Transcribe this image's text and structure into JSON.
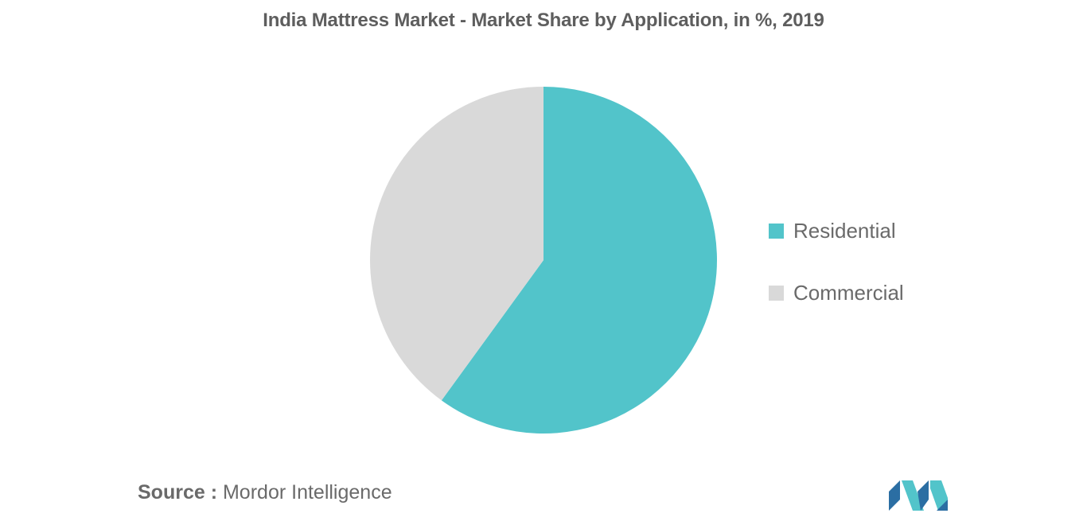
{
  "chart_data": {
    "type": "pie",
    "title": "India Mattress Market - Market Share by Application, in %, 2019",
    "slices": [
      {
        "name": "Residential",
        "value": 60,
        "color": "#52c4ca"
      },
      {
        "name": "Commercial",
        "value": 40,
        "color": "#d9d9d9"
      }
    ],
    "start_angle_deg": 0,
    "direction": "clockwise",
    "legend_placement": "right"
  },
  "source": {
    "label": "Source :",
    "text": "Mordor Intelligence"
  },
  "logo": {
    "icon": "mordor-intelligence-logo-icon",
    "colors": [
      "#2b6ea3",
      "#52c4ca"
    ]
  }
}
